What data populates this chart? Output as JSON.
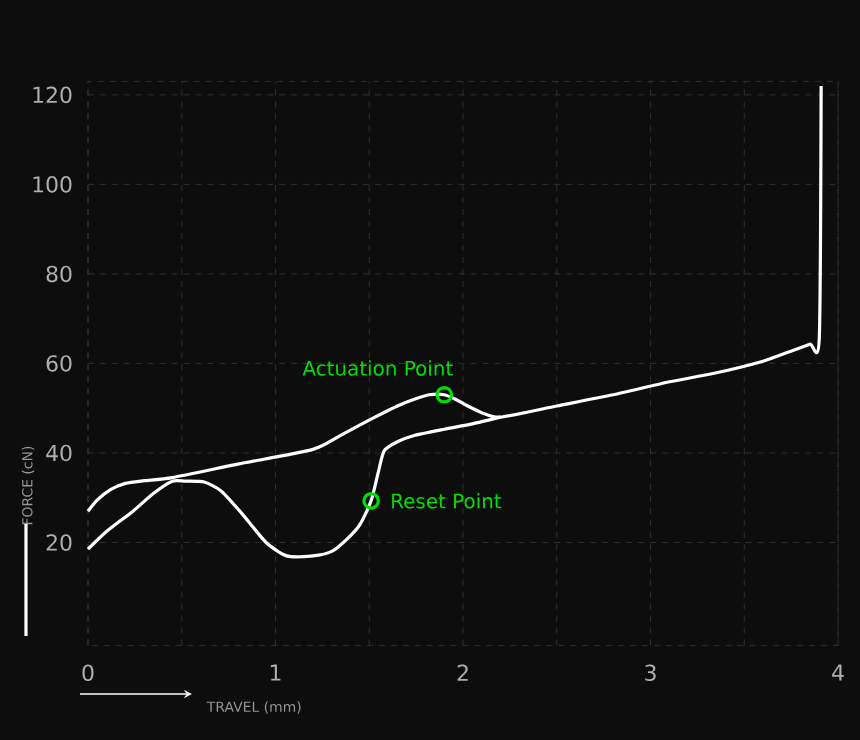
{
  "chart_data": {
    "type": "line",
    "xlabel": "TRAVEL (mm)",
    "ylabel": "FORCE (cN)",
    "xlim": [
      0,
      4
    ],
    "ylim": [
      -3,
      123
    ],
    "xticks": [
      0,
      {
        "value": 0.5,
        "label": null
      },
      1,
      {
        "value": 1.5,
        "label": null
      },
      2,
      {
        "value": 2.5,
        "label": null
      },
      3,
      {
        "value": 3.5,
        "label": null
      },
      4
    ],
    "yticks": [
      20,
      40,
      60,
      80,
      100,
      120
    ],
    "grid": true,
    "marker": "none",
    "line_style": "solid",
    "series": [
      {
        "color": "#ffffff",
        "x": [
          0,
          0.05,
          0.12,
          0.2,
          0.3,
          0.45,
          0.8,
          1.2,
          1.35,
          1.53,
          1.65,
          1.74,
          1.82,
          1.9,
          1.96,
          2.02,
          2.1,
          2.2,
          2.5,
          2.8,
          3.09,
          3.34,
          3.6,
          3.74,
          3.85,
          3.9,
          3.91
        ],
        "values": [
          27,
          29.5,
          31.8,
          33.2,
          33.8,
          34.5,
          37.5,
          40.8,
          44,
          48,
          50.5,
          52,
          53,
          53,
          52,
          50.6,
          49,
          48,
          50.5,
          53,
          55.8,
          57.8,
          60.5,
          62.6,
          64.3,
          65.5,
          122
        ]
      },
      {
        "color": "#ffffff",
        "x": [
          0,
          0.1,
          0.24,
          0.35,
          0.45,
          0.52,
          0.62,
          0.71,
          0.82,
          0.95,
          1.06,
          1.2,
          1.3,
          1.38,
          1.45,
          1.51,
          1.55,
          1.58,
          1.65,
          1.74,
          1.9,
          2.05,
          2.2
        ],
        "values": [
          18.5,
          22.5,
          27,
          31,
          33.7,
          33.7,
          33.5,
          31.5,
          26.5,
          20,
          17,
          17,
          18,
          20.7,
          24,
          29.3,
          36,
          40.5,
          42.5,
          43.9,
          45.3,
          46.5,
          48
        ]
      },
      {
        "type": "scatter",
        "name": "Actuation Point",
        "color": "#00e000",
        "marker": "circle",
        "x": [
          1.9
        ],
        "values": [
          53
        ]
      },
      {
        "type": "scatter",
        "name": "Reset Point",
        "color": "#00e000",
        "marker": "circle",
        "x": [
          1.51
        ],
        "values": [
          29.3
        ]
      }
    ]
  }
}
